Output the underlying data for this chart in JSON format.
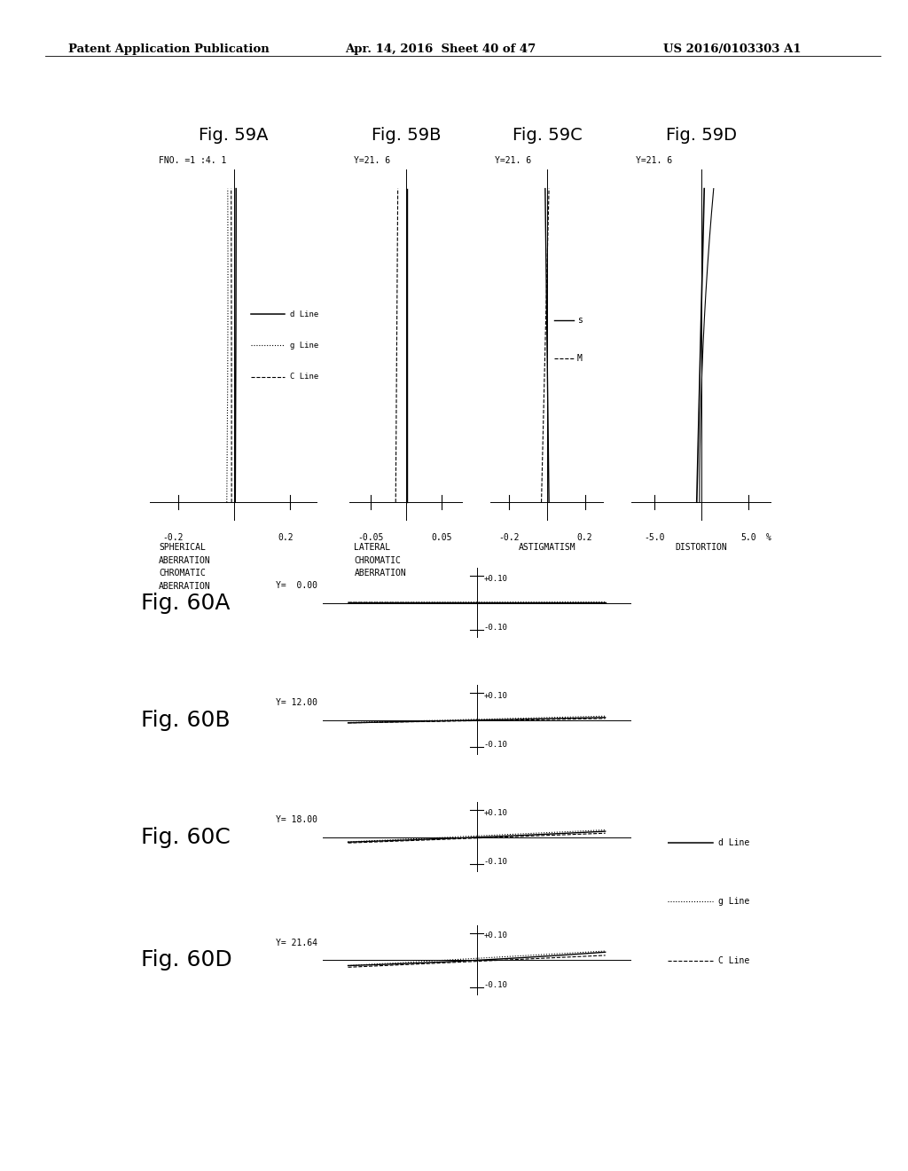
{
  "header_left": "Patent Application Publication",
  "header_mid": "Apr. 14, 2016  Sheet 40 of 47",
  "header_right": "US 2016/0103303 A1",
  "fig59_titles": [
    "Fig. 59A",
    "Fig. 59B",
    "Fig. 59C",
    "Fig. 59D"
  ],
  "fig59A_subtitle": "FNO. =1 :4. 1",
  "fig59B_subtitle": "Y=21. 6",
  "fig59C_subtitle": "Y=21. 6",
  "fig59D_subtitle": "Y=21. 6",
  "fig59A_xlabel1": "-0.2",
  "fig59A_xlabel2": "0.2",
  "fig59B_xlabel1": "-0.05",
  "fig59B_xlabel2": "0.05",
  "fig59C_xlabel1": "-0.2",
  "fig59C_xlabel2": "0.2",
  "fig59D_xlabel1": "-5.0",
  "fig59D_xlabel2": "5.0",
  "fig59D_xlabel3": "%",
  "fig59A_label1": "SPHERICAL",
  "fig59A_label2": "ABERRATION",
  "fig59A_label3": "CHROMATIC",
  "fig59A_label4": "ABERRATION",
  "fig59B_label1": "LATERAL",
  "fig59B_label2": "CHROMATIC",
  "fig59B_label3": "ABERRATION",
  "fig59C_label": "ASTIGMATISM",
  "fig59D_label": "DISTORTION",
  "fig60_titles": [
    "Fig. 60A",
    "Fig. 60B",
    "Fig. 60C",
    "Fig. 60D"
  ],
  "fig60_y_values": [
    "Y=  0.00",
    "Y= 12.00",
    "Y= 18.00",
    "Y= 21.64"
  ],
  "background": "#ffffff",
  "line_color": "#000000"
}
